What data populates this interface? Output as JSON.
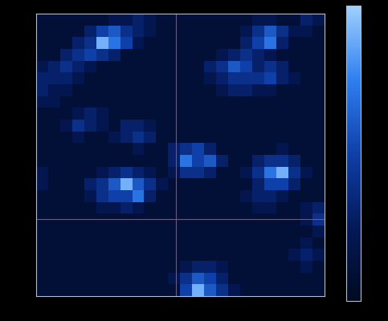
{
  "chart_data": {
    "type": "heatmap",
    "xlim": [
      0,
      24
    ],
    "ylim": [
      24,
      0
    ],
    "tick_labels": false,
    "crosshair": {
      "x": 11.64,
      "y": 17.45,
      "color": "#ff2020"
    },
    "colorbar_range": [
      0,
      10
    ],
    "cells": [
      [
        1,
        1,
        1,
        1,
        1,
        1,
        2,
        2,
        3,
        2,
        1,
        1,
        1,
        1,
        1,
        1,
        1,
        1,
        2,
        2,
        1,
        1,
        3,
        2
      ],
      [
        1,
        1,
        1,
        1,
        3,
        5,
        6,
        4,
        3,
        2,
        1,
        1,
        1,
        1,
        1,
        1,
        1,
        2,
        4,
        6,
        4,
        2,
        2,
        1
      ],
      [
        1,
        1,
        1,
        3,
        4,
        9,
        7,
        5,
        2,
        1,
        1,
        1,
        1,
        1,
        1,
        1,
        1,
        3,
        5,
        7,
        3,
        1,
        1,
        1
      ],
      [
        1,
        1,
        3,
        4,
        5,
        4,
        3,
        1,
        1,
        1,
        1,
        1,
        1,
        1,
        1,
        2,
        3,
        4,
        3,
        2,
        1,
        1,
        1,
        1
      ],
      [
        2,
        3,
        4,
        3,
        2,
        1,
        1,
        1,
        1,
        1,
        1,
        1,
        1,
        1,
        3,
        4,
        6,
        5,
        3,
        4,
        3,
        1,
        1,
        1
      ],
      [
        3,
        3,
        3,
        2,
        1,
        1,
        1,
        1,
        1,
        1,
        1,
        1,
        1,
        1,
        2,
        3,
        4,
        4,
        4,
        5,
        3,
        2,
        1,
        1
      ],
      [
        3,
        2,
        2,
        1,
        1,
        1,
        1,
        1,
        1,
        1,
        1,
        1,
        1,
        1,
        1,
        2,
        3,
        3,
        2,
        2,
        1,
        1,
        1,
        1
      ],
      [
        2,
        2,
        1,
        1,
        1,
        1,
        1,
        1,
        1,
        1,
        1,
        1,
        1,
        1,
        1,
        1,
        1,
        1,
        1,
        1,
        1,
        1,
        1,
        1
      ],
      [
        1,
        1,
        1,
        2,
        3,
        2,
        1,
        1,
        1,
        1,
        1,
        1,
        1,
        1,
        1,
        1,
        1,
        1,
        1,
        1,
        1,
        1,
        1,
        1
      ],
      [
        1,
        1,
        2,
        4,
        3,
        2,
        1,
        3,
        3,
        2,
        1,
        1,
        1,
        1,
        1,
        1,
        1,
        1,
        1,
        1,
        1,
        1,
        1,
        1
      ],
      [
        1,
        1,
        1,
        2,
        1,
        1,
        2,
        3,
        4,
        3,
        1,
        1,
        1,
        1,
        1,
        1,
        1,
        1,
        1,
        1,
        1,
        1,
        1,
        1
      ],
      [
        1,
        1,
        1,
        1,
        1,
        1,
        1,
        1,
        2,
        1,
        1,
        3,
        4,
        5,
        3,
        1,
        1,
        1,
        1,
        1,
        2,
        1,
        1,
        1
      ],
      [
        1,
        1,
        1,
        1,
        1,
        1,
        1,
        1,
        1,
        1,
        1,
        3,
        7,
        5,
        6,
        3,
        1,
        1,
        3,
        4,
        4,
        3,
        1,
        1
      ],
      [
        2,
        1,
        1,
        1,
        1,
        2,
        3,
        4,
        3,
        2,
        1,
        2,
        4,
        4,
        3,
        1,
        1,
        2,
        4,
        7,
        9,
        4,
        2,
        1
      ],
      [
        2,
        1,
        1,
        1,
        3,
        4,
        6,
        9,
        6,
        4,
        2,
        1,
        1,
        1,
        1,
        1,
        1,
        1,
        3,
        5,
        5,
        3,
        1,
        1
      ],
      [
        1,
        1,
        1,
        1,
        2,
        4,
        5,
        5,
        7,
        3,
        1,
        1,
        1,
        1,
        1,
        1,
        1,
        2,
        3,
        3,
        2,
        1,
        1,
        1
      ],
      [
        1,
        1,
        1,
        1,
        1,
        2,
        2,
        3,
        2,
        1,
        1,
        1,
        1,
        1,
        1,
        1,
        1,
        1,
        2,
        2,
        1,
        1,
        2,
        3
      ],
      [
        1,
        1,
        1,
        1,
        1,
        1,
        1,
        1,
        1,
        1,
        1,
        1,
        1,
        1,
        1,
        1,
        1,
        1,
        1,
        1,
        1,
        1,
        2,
        4
      ],
      [
        1,
        1,
        1,
        1,
        1,
        1,
        1,
        1,
        1,
        1,
        1,
        1,
        1,
        1,
        1,
        1,
        1,
        1,
        1,
        1,
        1,
        1,
        1,
        2
      ],
      [
        1,
        1,
        1,
        1,
        1,
        1,
        1,
        1,
        1,
        1,
        1,
        1,
        1,
        1,
        1,
        1,
        1,
        1,
        1,
        1,
        1,
        1,
        2,
        1
      ],
      [
        1,
        1,
        1,
        1,
        1,
        1,
        1,
        1,
        1,
        1,
        1,
        1,
        1,
        1,
        1,
        1,
        1,
        1,
        1,
        1,
        1,
        2,
        3,
        2
      ],
      [
        1,
        1,
        1,
        1,
        1,
        1,
        1,
        1,
        1,
        1,
        1,
        1,
        2,
        3,
        3,
        2,
        1,
        1,
        1,
        1,
        1,
        1,
        2,
        1
      ],
      [
        1,
        1,
        1,
        1,
        1,
        1,
        1,
        1,
        1,
        1,
        1,
        2,
        4,
        6,
        5,
        3,
        1,
        1,
        1,
        1,
        1,
        1,
        1,
        1
      ],
      [
        1,
        1,
        1,
        1,
        1,
        1,
        1,
        1,
        1,
        1,
        1,
        1,
        5,
        9,
        6,
        4,
        2,
        1,
        1,
        1,
        1,
        1,
        1,
        1
      ]
    ]
  }
}
